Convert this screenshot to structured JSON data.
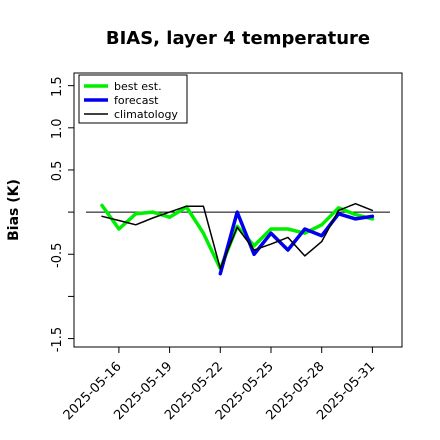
{
  "chart_data": {
    "type": "line",
    "title": "BIAS, layer 4 temperature",
    "xlabel": "",
    "ylabel": "Bias (K)",
    "ylim": [
      -1.6,
      1.65
    ],
    "yticks": [
      -1.5,
      -1.0,
      -0.5,
      0.0,
      0.5,
      1.0,
      1.5
    ],
    "ytick_labels": [
      "-1.5",
      "",
      "-0.5",
      "",
      "0.5",
      "1.0",
      "1.5"
    ],
    "xticks": [
      "2025-05-16",
      "2025-05-19",
      "2025-05-22",
      "2025-05-25",
      "2025-05-28",
      "2025-05-31"
    ],
    "highlight_tick": "2025-05-22",
    "highlight_color": "#228B22",
    "reference_line": 0.0,
    "grid": false,
    "legend_position": "top-left",
    "x": [
      "2025-05-15",
      "2025-05-16",
      "2025-05-17",
      "2025-05-18",
      "2025-05-19",
      "2025-05-20",
      "2025-05-21",
      "2025-05-22",
      "2025-05-23",
      "2025-05-24",
      "2025-05-25",
      "2025-05-26",
      "2025-05-27",
      "2025-05-28",
      "2025-05-29",
      "2025-05-30",
      "2025-05-31"
    ],
    "series": [
      {
        "name": "best est.",
        "color": "#00ee00",
        "width": 3.5,
        "values": [
          0.08,
          -0.2,
          -0.02,
          0.0,
          -0.06,
          0.06,
          -0.25,
          -0.67,
          -0.17,
          -0.4,
          -0.2,
          -0.2,
          -0.25,
          -0.15,
          0.05,
          -0.03,
          -0.08
        ]
      },
      {
        "name": "forecast",
        "color": "#0000ee",
        "width": 3.5,
        "values": [
          null,
          null,
          null,
          null,
          null,
          null,
          null,
          -0.73,
          0.0,
          -0.5,
          -0.25,
          -0.45,
          -0.2,
          -0.28,
          -0.02,
          -0.08,
          -0.05
        ]
      },
      {
        "name": "climatology",
        "color": "#000000",
        "width": 1.5,
        "values": [
          -0.05,
          -0.1,
          -0.15,
          -0.07,
          0.0,
          0.07,
          0.07,
          -0.67,
          -0.18,
          -0.45,
          -0.38,
          -0.3,
          -0.52,
          -0.35,
          0.02,
          0.1,
          0.02
        ]
      }
    ]
  }
}
